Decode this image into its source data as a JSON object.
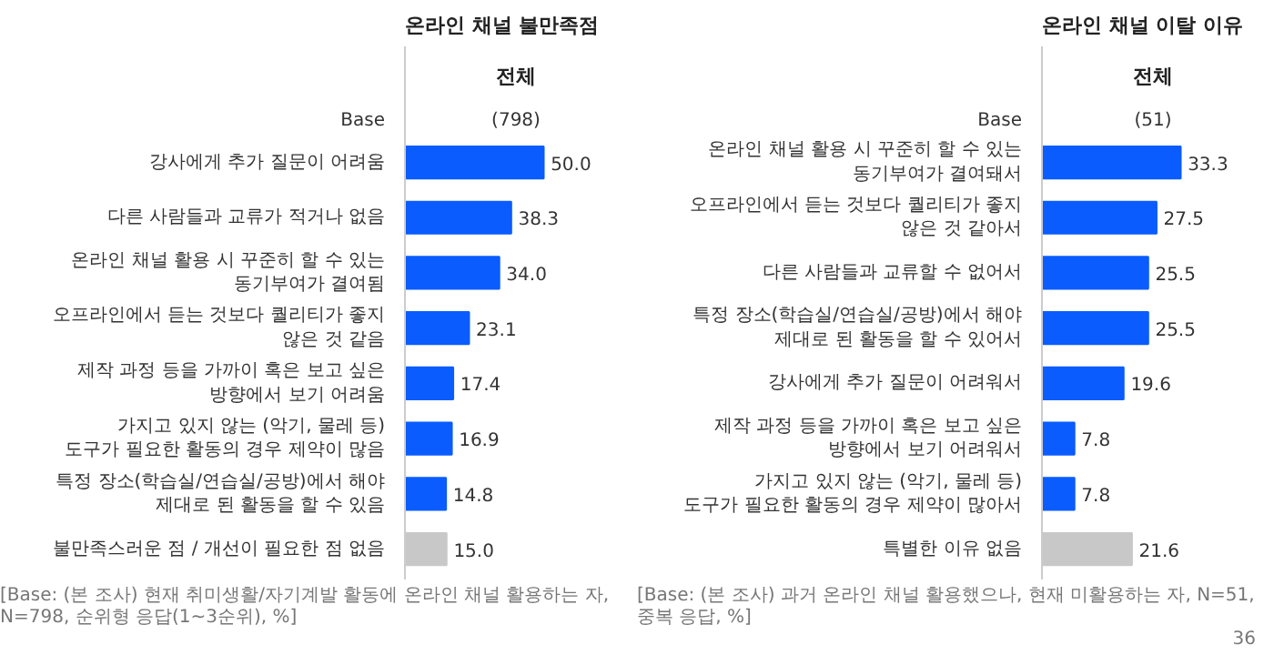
{
  "chart_data": [
    {
      "type": "bar",
      "orientation": "horizontal",
      "title": "온라인 채널 불만족점",
      "categories": [
        "강사에게 추가 질문이 어려움",
        "다른 사람들과 교류가 적거나 없음",
        "온라인 채널 활용 시 꾸준히 할 수 있는 동기부여가 결여됨",
        "오프라인에서 듣는 것보다 퀄리티가 좋지 않은 것 같음",
        "제작 과정 등을 가까이 혹은 보고 싶은 방향에서 보기 어려움",
        "가지고 있지 않는 (악기, 물레 등) 도구가 필요한 활동의 경우 제약이 많음",
        "특정 장소(학습실/연습실/공방)에서 해야 제대로 된 활동을 할 수 있음",
        "불만족스러운 점 / 개선이 필요한 점 없음"
      ],
      "values": [
        50.0,
        38.3,
        34.0,
        23.1,
        17.4,
        16.9,
        14.8,
        15.0
      ],
      "colors": [
        "#0a5cff",
        "#0a5cff",
        "#0a5cff",
        "#0a5cff",
        "#0a5cff",
        "#0a5cff",
        "#0a5cff",
        "#c8c8c8"
      ],
      "value_labels": [
        "50.0",
        "38.3",
        "34.0",
        "23.1",
        "17.4",
        "16.9",
        "14.8",
        "15.0"
      ],
      "tick_labels": "y",
      "annotations": [
        "전체",
        "Base",
        "(798)",
        "[Base: (본 조사) 현재 취미생활/자기계발 활동에 온라인 채널 활용하는 자, N=798, 순위형 응답(1~3순위), %]"
      ]
    },
    {
      "type": "bar",
      "orientation": "horizontal",
      "title": "온라인 채널 이탈 이유",
      "categories": [
        "온라인 채널 활용 시 꾸준히 할 수 있는 동기부여가 결여돼서",
        "오프라인에서 듣는 것보다 퀄리티가 좋지 않은 것 같아서",
        "다른 사람들과 교류할 수 없어서",
        "특정 장소(학습실/연습실/공방)에서 해야 제대로 된 활동을 할 수 있어서",
        "강사에게 추가 질문이 어려워서",
        "제작 과정 등을 가까이 혹은 보고 싶은 방향에서 보기 어려워서",
        "가지고 있지 않는 (악기, 물레 등) 도구가 필요한 활동의 경우 제약이 많아서",
        "특별한 이유 없음"
      ],
      "values": [
        33.3,
        27.5,
        25.5,
        25.5,
        19.6,
        7.8,
        7.8,
        21.6
      ],
      "colors": [
        "#0a5cff",
        "#0a5cff",
        "#0a5cff",
        "#0a5cff",
        "#0a5cff",
        "#0a5cff",
        "#0a5cff",
        "#c8c8c8"
      ],
      "value_labels": [
        "33.3",
        "27.5",
        "25.5",
        "25.5",
        "19.6",
        "7.8",
        "7.8",
        "21.6"
      ],
      "tick_labels": "y",
      "annotations": [
        "전체",
        "Base",
        "(51)",
        "[Base: (본 조사) 과거 온라인 채널 활용했으나, 현재 미활용하는 자, N=51, 중복 응답, %]",
        "36"
      ]
    }
  ]
}
